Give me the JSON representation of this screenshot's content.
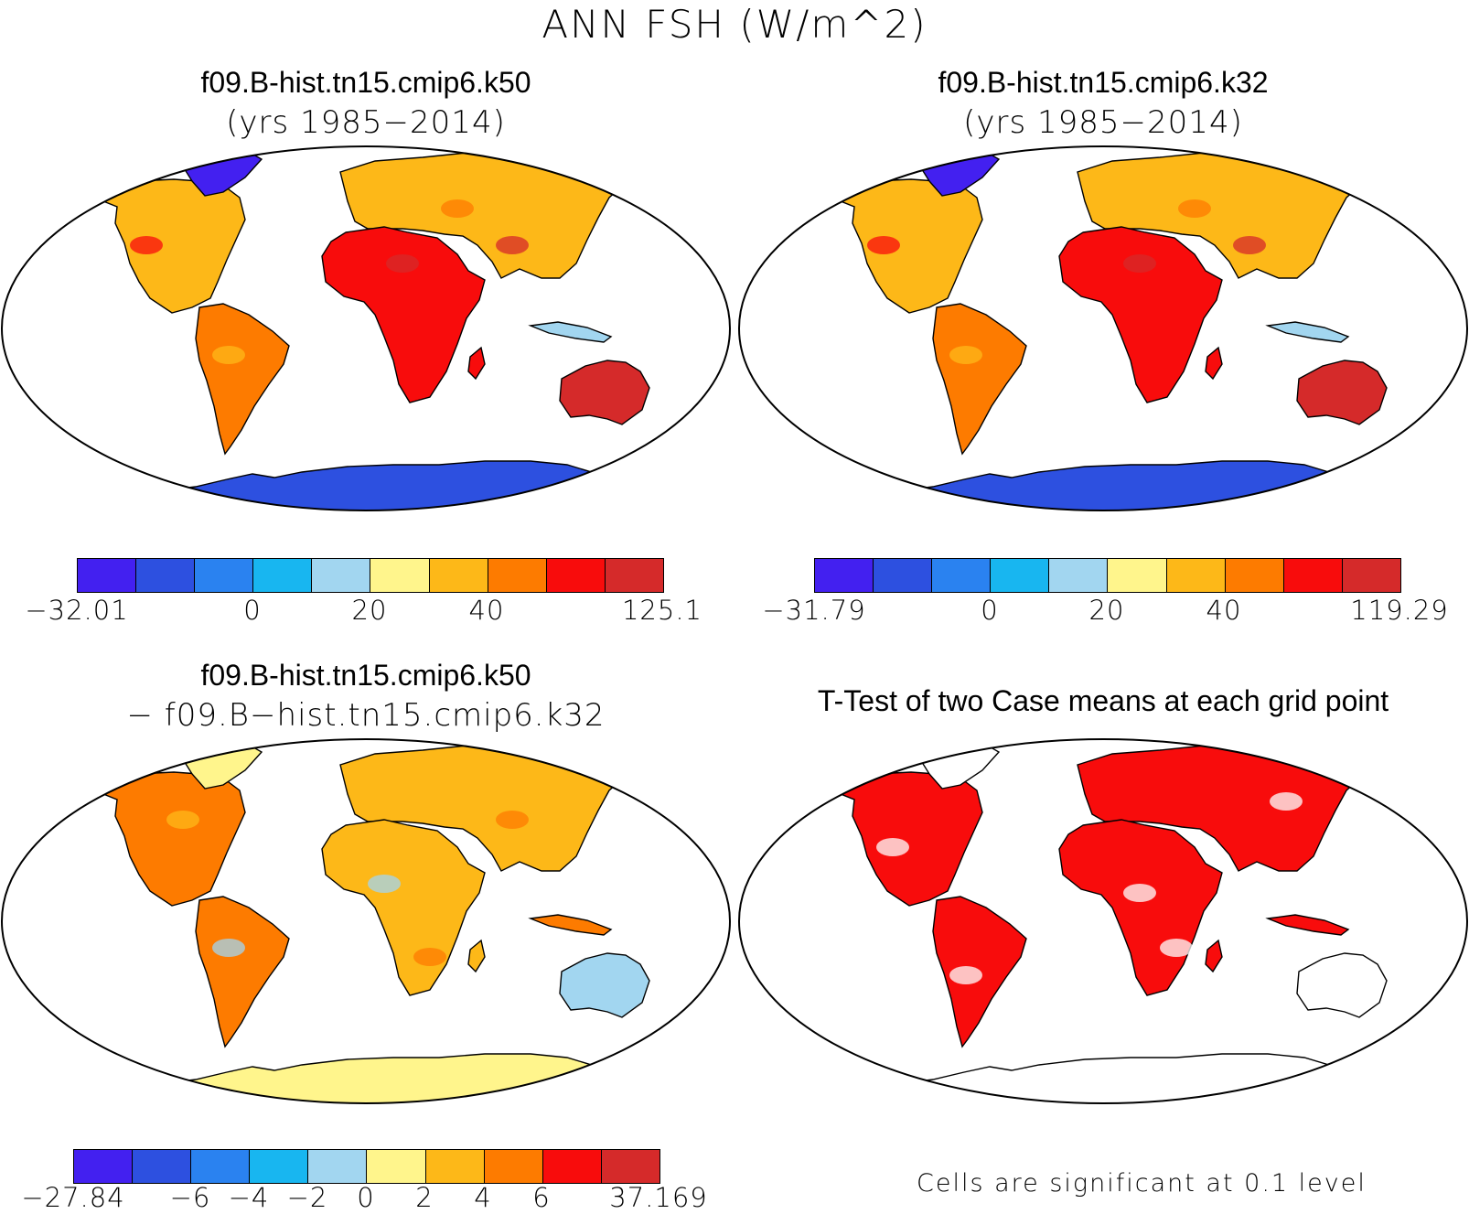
{
  "main_title": "ANN FSH (W/m^2)",
  "panels": [
    {
      "id": "case1",
      "title_line1": "f09.B-hist.tn15.cmip6.k50",
      "title_line2": "(yrs 1985−2014)",
      "colorbar": {
        "colors": [
          "#4320f0",
          "#2d50e0",
          "#2a82f0",
          "#18b6f0",
          "#a2d6f0",
          "#fff58c",
          "#fdb818",
          "#fd7b00",
          "#f80c0c",
          "#d52a2a"
        ],
        "tick_labels": [
          "−32.01",
          "0",
          "20",
          "40",
          "125.1"
        ]
      }
    },
    {
      "id": "case2",
      "title_line1": "f09.B-hist.tn15.cmip6.k32",
      "title_line2": "(yrs 1985−2014)",
      "colorbar": {
        "colors": [
          "#4320f0",
          "#2d50e0",
          "#2a82f0",
          "#18b6f0",
          "#a2d6f0",
          "#fff58c",
          "#fdb818",
          "#fd7b00",
          "#f80c0c",
          "#d52a2a"
        ],
        "tick_labels": [
          "−31.79",
          "0",
          "20",
          "40",
          "119.29"
        ]
      }
    },
    {
      "id": "difference",
      "title_line1": "f09.B-hist.tn15.cmip6.k50",
      "title_line2": "− f09.B−hist.tn15.cmip6.k32",
      "colorbar": {
        "colors": [
          "#4320f0",
          "#2d50e0",
          "#2a82f0",
          "#18b6f0",
          "#a2d6f0",
          "#fff58c",
          "#fdb818",
          "#fd7b00",
          "#f80c0c",
          "#d52a2a"
        ],
        "tick_labels": [
          "−27.84",
          "−6",
          "−4",
          "−2",
          "0",
          "2",
          "4",
          "6",
          "37.169"
        ]
      }
    },
    {
      "id": "ttest",
      "title_line1": "T-Test of two Case means at each grid point",
      "significance_color": "#f80c0c",
      "footnote": "Cells are significant at 0.1 level"
    }
  ]
}
